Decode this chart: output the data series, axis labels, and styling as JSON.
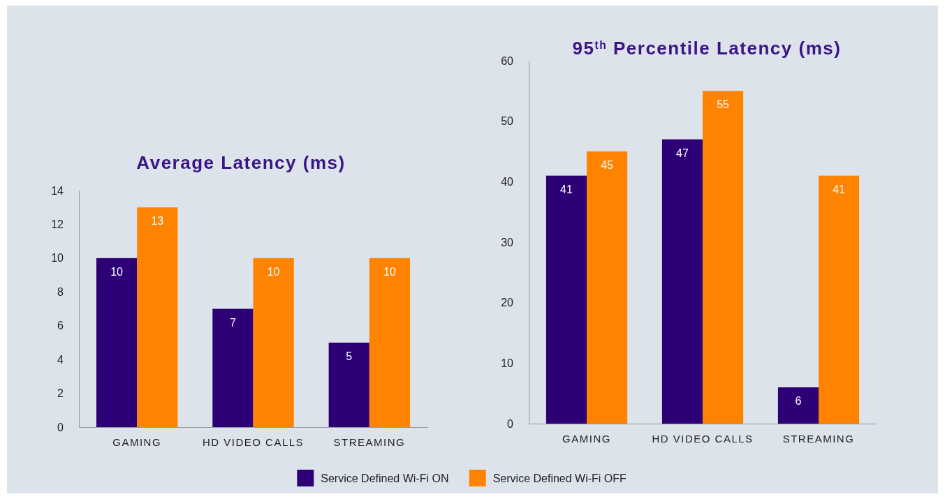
{
  "chart_data": [
    {
      "type": "bar",
      "title": "Average Latency (ms)",
      "categories": [
        "GAMING",
        "HD VIDEO CALLS",
        "STREAMING"
      ],
      "series": [
        {
          "name": "Service Defined Wi-Fi ON",
          "color": "#2e0076",
          "values": [
            10,
            7,
            5
          ]
        },
        {
          "name": "Service Defined Wi-Fi OFF",
          "color": "#ff8200",
          "values": [
            13,
            10,
            10
          ]
        }
      ],
      "ylim": [
        0,
        14
      ],
      "yticks": [
        0,
        2,
        4,
        6,
        8,
        10,
        12,
        14
      ],
      "data_labels": true,
      "legend": "bottom"
    },
    {
      "type": "bar",
      "title": "95$^{th}$ Percentile Latency (ms)",
      "categories": [
        "GAMING",
        "HD VIDEO CALLS",
        "STREAMING"
      ],
      "series": [
        {
          "color": "#2e0076",
          "values": [
            41,
            47,
            6
          ]
        },
        {
          "color": "#ff8200",
          "values": [
            45,
            55,
            41
          ]
        }
      ],
      "ylim": [
        0,
        60
      ],
      "yticks": [
        0,
        10,
        20,
        30,
        40,
        50,
        60
      ],
      "data_labels": true
    }
  ]
}
